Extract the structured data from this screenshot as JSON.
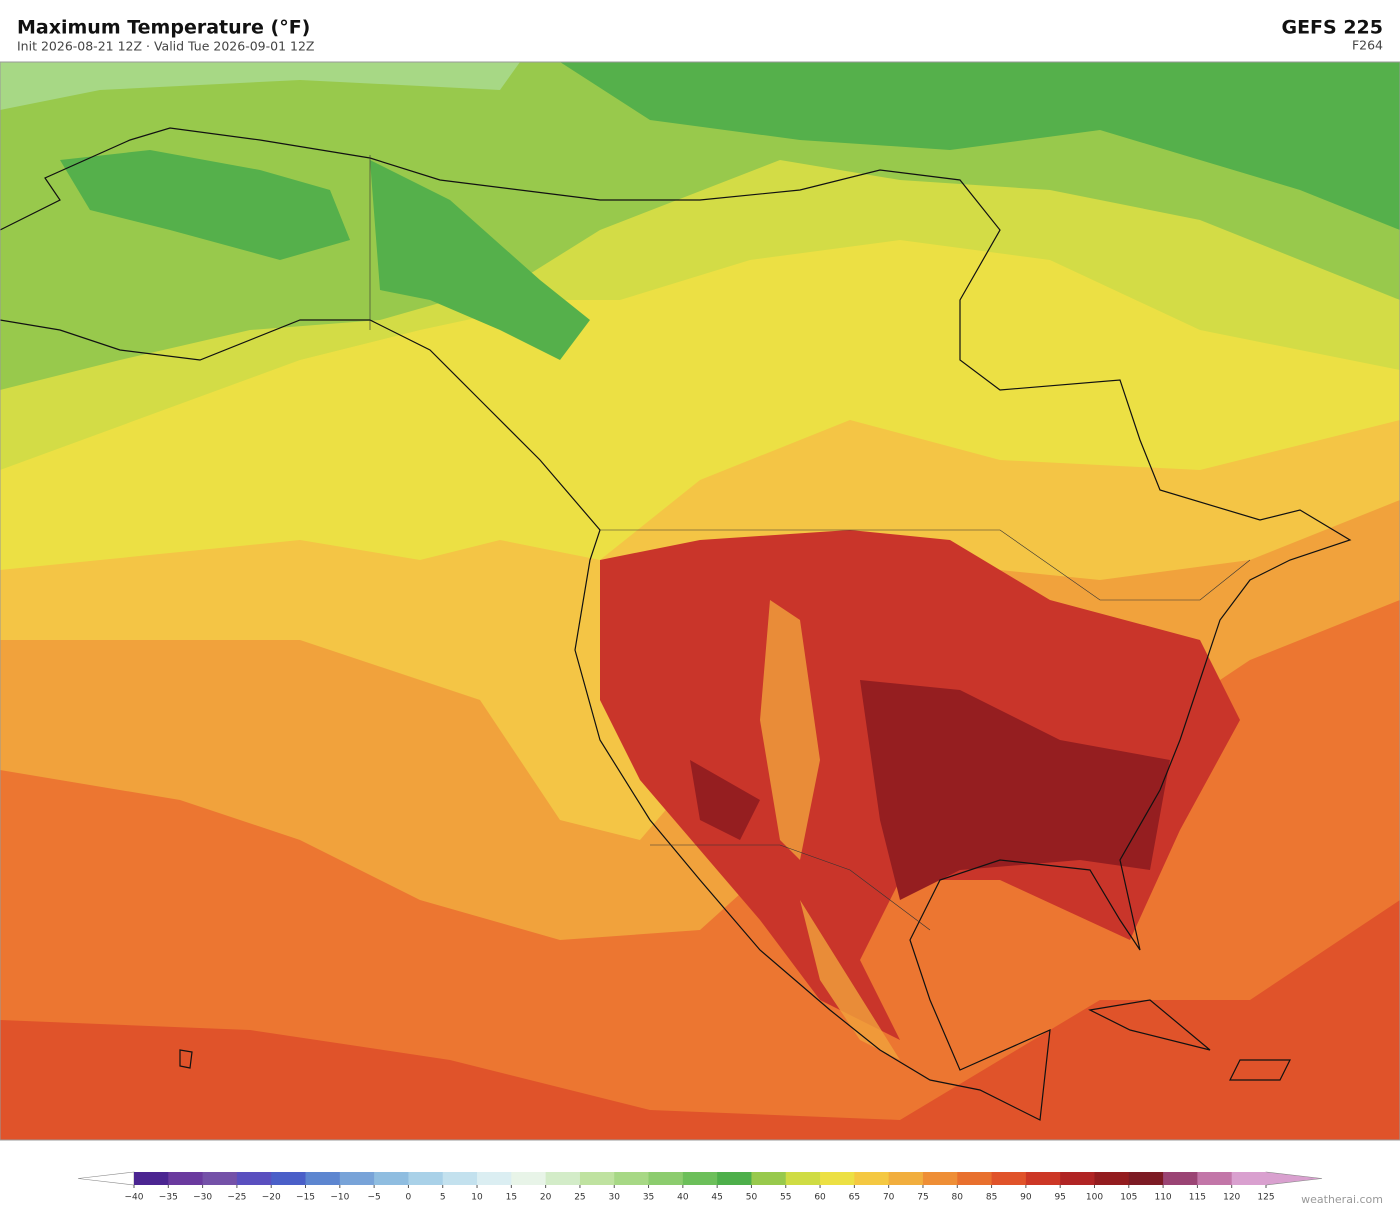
{
  "header": {
    "title": "Maximum Temperature  (°F)",
    "subtitle": "Init 2026-08-21 12Z   ·   Valid Tue 2026-09-01 12Z",
    "model": "GEFS  225",
    "forecast_hour": "F264"
  },
  "colorbar": {
    "ticks": [
      {
        "value": -40,
        "label": "−40"
      },
      {
        "value": -35,
        "label": "−35"
      },
      {
        "value": -30,
        "label": "−30"
      },
      {
        "value": -25,
        "label": "−25"
      },
      {
        "value": -20,
        "label": "−20"
      },
      {
        "value": -15,
        "label": "−15"
      },
      {
        "value": -10,
        "label": "−10"
      },
      {
        "value": -5,
        "label": "−5"
      },
      0,
      5,
      10,
      15,
      20,
      25,
      30,
      35,
      40,
      45,
      50,
      55,
      60,
      65,
      70,
      75,
      80,
      85,
      90,
      95,
      100,
      105,
      110,
      115,
      120,
      125
    ],
    "colors": [
      "#4b2591",
      "#6a3a9e",
      "#7451a8",
      "#5a4fbf",
      "#4a5fc8",
      "#5d86d0",
      "#78a3d8",
      "#8fbde0",
      "#a9d1e8",
      "#c3e1ee",
      "#dbeef2",
      "#e8f4e8",
      "#d3ecc8",
      "#bfe2a0",
      "#a7d885",
      "#8ccc6e",
      "#6cbf5a",
      "#4daf4a",
      "#98c94c",
      "#cfdc44",
      "#ece044",
      "#f4c842",
      "#f1ae3e",
      "#ee8e36",
      "#e8702e",
      "#e0532a",
      "#cc3726",
      "#b02424",
      "#931c1f",
      "#7c1b24",
      "#9a4474",
      "#c276a8",
      "#d9a0cf"
    ],
    "under_color": "#ffffff",
    "over_color": "#d9a0cf"
  },
  "footer": {
    "credit": "weatherai.com"
  }
}
